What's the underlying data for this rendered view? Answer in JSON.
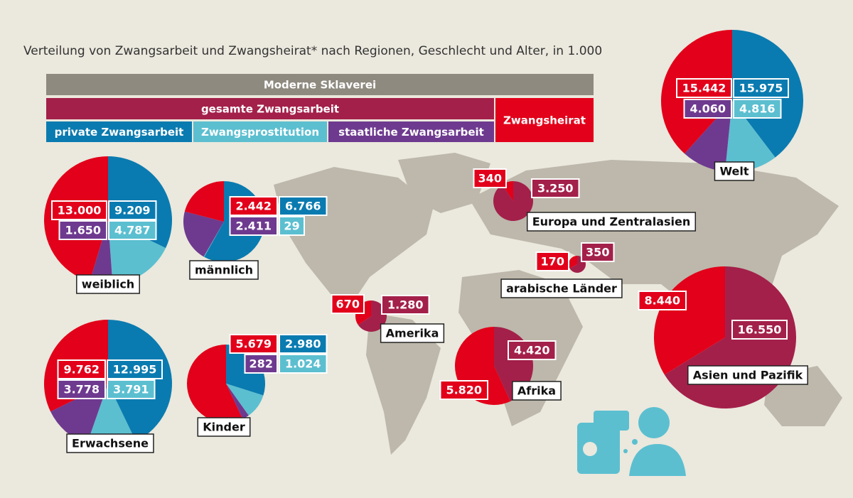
{
  "title": "Verteilung von Zwangsarbeit und Zwangsheirat* nach Regionen, Geschlecht und Alter, in 1.000",
  "legend": [
    {
      "label": "Moderne Sklaverei",
      "color": "#8f8a7f"
    },
    {
      "label": "gesamte Zwangsarbeit",
      "color": "#a3204a"
    },
    {
      "label": "Zwangsheirat",
      "color": "#e2001a"
    },
    {
      "label": "private Zwangsarbeit",
      "color": "#0a7bb0"
    },
    {
      "label": "Zwangsprostitution",
      "color": "#5bbfd0"
    },
    {
      "label": "staatliche Zwangsarbeit",
      "color": "#6e3a8f"
    }
  ],
  "chart_data": [
    {
      "type": "pie",
      "label": "Welt",
      "values": [
        15975,
        4816,
        4060,
        15442
      ],
      "value_labels": [
        "15.975",
        "4.816",
        "4.060",
        "15.442"
      ],
      "colors": [
        "#0a7bb0",
        "#5bbfd0",
        "#6e3a8f",
        "#e2001a"
      ]
    },
    {
      "type": "pie",
      "label": "weiblich",
      "values": [
        9209,
        4787,
        1650,
        13000
      ],
      "value_labels": [
        "9.209",
        "4.787",
        "1.650",
        "13.000"
      ],
      "colors": [
        "#0a7bb0",
        "#5bbfd0",
        "#6e3a8f",
        "#e2001a"
      ]
    },
    {
      "type": "pie",
      "label": "männlich",
      "values": [
        6766,
        29,
        2411,
        2442
      ],
      "value_labels": [
        "6.766",
        "29",
        "2.411",
        "2.442"
      ],
      "colors": [
        "#0a7bb0",
        "#5bbfd0",
        "#6e3a8f",
        "#e2001a"
      ]
    },
    {
      "type": "pie",
      "label": "Erwachsene",
      "values": [
        12995,
        3791,
        3778,
        9762
      ],
      "value_labels": [
        "12.995",
        "3.791",
        "3.778",
        "9.762"
      ],
      "colors": [
        "#0a7bb0",
        "#5bbfd0",
        "#6e3a8f",
        "#e2001a"
      ]
    },
    {
      "type": "pie",
      "label": "Kinder",
      "values": [
        2980,
        1024,
        282,
        5679
      ],
      "value_labels": [
        "2.980",
        "1.024",
        "282",
        "5.679"
      ],
      "colors": [
        "#0a7bb0",
        "#5bbfd0",
        "#6e3a8f",
        "#e2001a"
      ]
    },
    {
      "type": "pie",
      "label": "Europa und Zentralasien",
      "values": [
        3250,
        340
      ],
      "value_labels": [
        "3.250",
        "340"
      ],
      "colors": [
        "#a3204a",
        "#e2001a"
      ]
    },
    {
      "type": "pie",
      "label": "arabische Länder",
      "values": [
        350,
        170
      ],
      "value_labels": [
        "350",
        "170"
      ],
      "colors": [
        "#a3204a",
        "#e2001a"
      ]
    },
    {
      "type": "pie",
      "label": "Amerika",
      "values": [
        1280,
        670
      ],
      "value_labels": [
        "1.280",
        "670"
      ],
      "colors": [
        "#a3204a",
        "#e2001a"
      ]
    },
    {
      "type": "pie",
      "label": "Afrika",
      "values": [
        4420,
        5820
      ],
      "value_labels": [
        "4.420",
        "5.820"
      ],
      "colors": [
        "#a3204a",
        "#e2001a"
      ]
    },
    {
      "type": "pie",
      "label": "Asien und Pazifik",
      "values": [
        16550,
        8440
      ],
      "value_labels": [
        "16.550",
        "8.440"
      ],
      "colors": [
        "#a3204a",
        "#e2001a"
      ]
    }
  ]
}
